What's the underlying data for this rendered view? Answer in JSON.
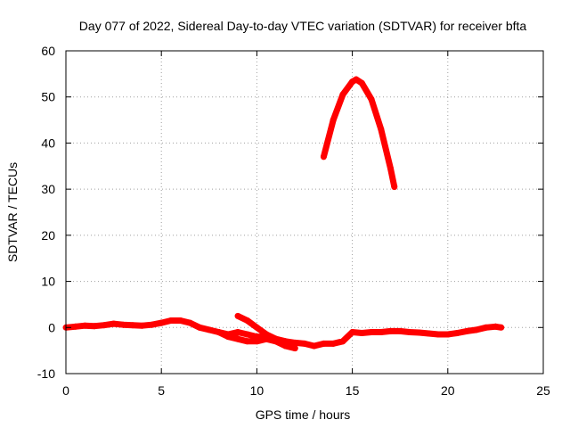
{
  "chart_data": {
    "type": "scatter",
    "title": "Day 077 of 2022, Sidereal Day-to-day VTEC variation (SDTVAR) for receiver bfta",
    "xlabel": "GPS time / hours",
    "ylabel": "SDTVAR / TECUs",
    "xlim": [
      0,
      25
    ],
    "ylim": [
      -10,
      60
    ],
    "xticks": [
      0,
      5,
      10,
      15,
      20,
      25
    ],
    "yticks": [
      -10,
      0,
      10,
      20,
      30,
      40,
      50,
      60
    ],
    "grid": true,
    "series": [
      {
        "name": "SDTVAR",
        "color": "#ff0000",
        "segments": [
          {
            "x": [
              0.0,
              0.5,
              1.0,
              1.5,
              2.0,
              2.5,
              3.0,
              3.5,
              4.0,
              4.5,
              5.0,
              5.5,
              6.0,
              6.5,
              7.0,
              7.5,
              8.0,
              8.5,
              9.0,
              9.5,
              10.0,
              10.5,
              11.0,
              11.5,
              12.0,
              12.5,
              13.0,
              13.5,
              14.0,
              14.5,
              15.0,
              15.5,
              16.0,
              16.5,
              17.0,
              17.5,
              18.0,
              18.5,
              19.0,
              19.5,
              20.0,
              20.5,
              21.0,
              21.5,
              22.0,
              22.5,
              22.8
            ],
            "y": [
              0.0,
              0.2,
              0.4,
              0.3,
              0.5,
              0.8,
              0.6,
              0.5,
              0.4,
              0.6,
              1.0,
              1.5,
              1.5,
              1.0,
              0.0,
              -0.5,
              -1.0,
              -1.5,
              -1.0,
              -1.5,
              -2.0,
              -2.0,
              -2.5,
              -3.0,
              -3.3,
              -3.5,
              -4.0,
              -3.5,
              -3.5,
              -3.0,
              -1.0,
              -1.2,
              -1.0,
              -1.0,
              -0.8,
              -0.8,
              -1.0,
              -1.1,
              -1.3,
              -1.5,
              -1.5,
              -1.2,
              -0.8,
              -0.5,
              0.0,
              0.2,
              0.0
            ]
          },
          {
            "x": [
              9.0,
              9.5,
              10.0,
              10.5,
              11.0,
              11.5
            ],
            "y": [
              2.5,
              1.5,
              0.0,
              -1.5,
              -2.5,
              -3.5
            ]
          },
          {
            "x": [
              8.0,
              8.5,
              9.0,
              9.5,
              10.0,
              10.5,
              11.0,
              11.5,
              12.0
            ],
            "y": [
              -1.0,
              -2.0,
              -2.5,
              -3.0,
              -3.0,
              -2.5,
              -3.0,
              -4.0,
              -4.5
            ]
          },
          {
            "x": [
              13.5,
              14.0,
              14.5,
              15.0,
              15.2,
              15.5,
              16.0,
              16.5,
              17.0,
              17.2
            ],
            "y": [
              37,
              45,
              50.5,
              53.3,
              53.8,
              53.0,
              49.5,
              43.0,
              34.5,
              30.5
            ]
          }
        ]
      }
    ]
  }
}
